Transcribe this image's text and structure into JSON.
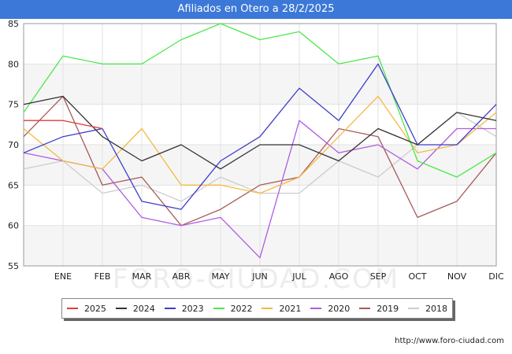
{
  "header": {
    "title": "Afiliados en Otero a 28/2/2025"
  },
  "watermark": "FORO-CIUDAD.COM",
  "source": "http://www.foro-ciudad.com",
  "chart_data": {
    "type": "line",
    "title": "Afiliados en Otero a 28/2/2025",
    "xlabel": "",
    "ylabel": "",
    "categories": [
      "",
      "ENE",
      "FEB",
      "MAR",
      "ABR",
      "MAY",
      "JUN",
      "JUL",
      "AGO",
      "SEP",
      "OCT",
      "NOV",
      "DIC"
    ],
    "ylim": [
      55,
      85
    ],
    "yticks": [
      55,
      60,
      65,
      70,
      75,
      80,
      85
    ],
    "grid": true,
    "legend": "bottom",
    "series": [
      {
        "name": "2025",
        "color": "#e03c3c",
        "values": [
          73,
          73,
          72,
          null,
          null,
          null,
          null,
          null,
          null,
          null,
          null,
          null,
          null
        ]
      },
      {
        "name": "2024",
        "color": "#333333",
        "values": [
          75,
          76,
          71,
          68,
          70,
          67,
          70,
          70,
          68,
          72,
          70,
          74,
          73
        ]
      },
      {
        "name": "2023",
        "color": "#3c3ccc",
        "values": [
          69,
          71,
          72,
          63,
          62,
          68,
          71,
          77,
          73,
          80,
          70,
          70,
          75
        ]
      },
      {
        "name": "2022",
        "color": "#4ce84c",
        "values": [
          74,
          81,
          80,
          80,
          83,
          85,
          83,
          84,
          80,
          81,
          68,
          66,
          69
        ]
      },
      {
        "name": "2021",
        "color": "#f5b841",
        "values": [
          72,
          68,
          67,
          72,
          65,
          65,
          64,
          66,
          71,
          76,
          69,
          70,
          74
        ]
      },
      {
        "name": "2020",
        "color": "#b05ce0",
        "values": [
          69,
          68,
          67,
          61,
          60,
          61,
          56,
          73,
          69,
          70,
          67,
          72,
          72
        ]
      },
      {
        "name": "2019",
        "color": "#a85a5a",
        "values": [
          71,
          76,
          65,
          66,
          60,
          62,
          65,
          66,
          72,
          71,
          61,
          63,
          69
        ]
      },
      {
        "name": "2018",
        "color": "#cccccc",
        "values": [
          67,
          68,
          64,
          65,
          63,
          66,
          64,
          64,
          68,
          66,
          70,
          74,
          71
        ]
      }
    ]
  }
}
